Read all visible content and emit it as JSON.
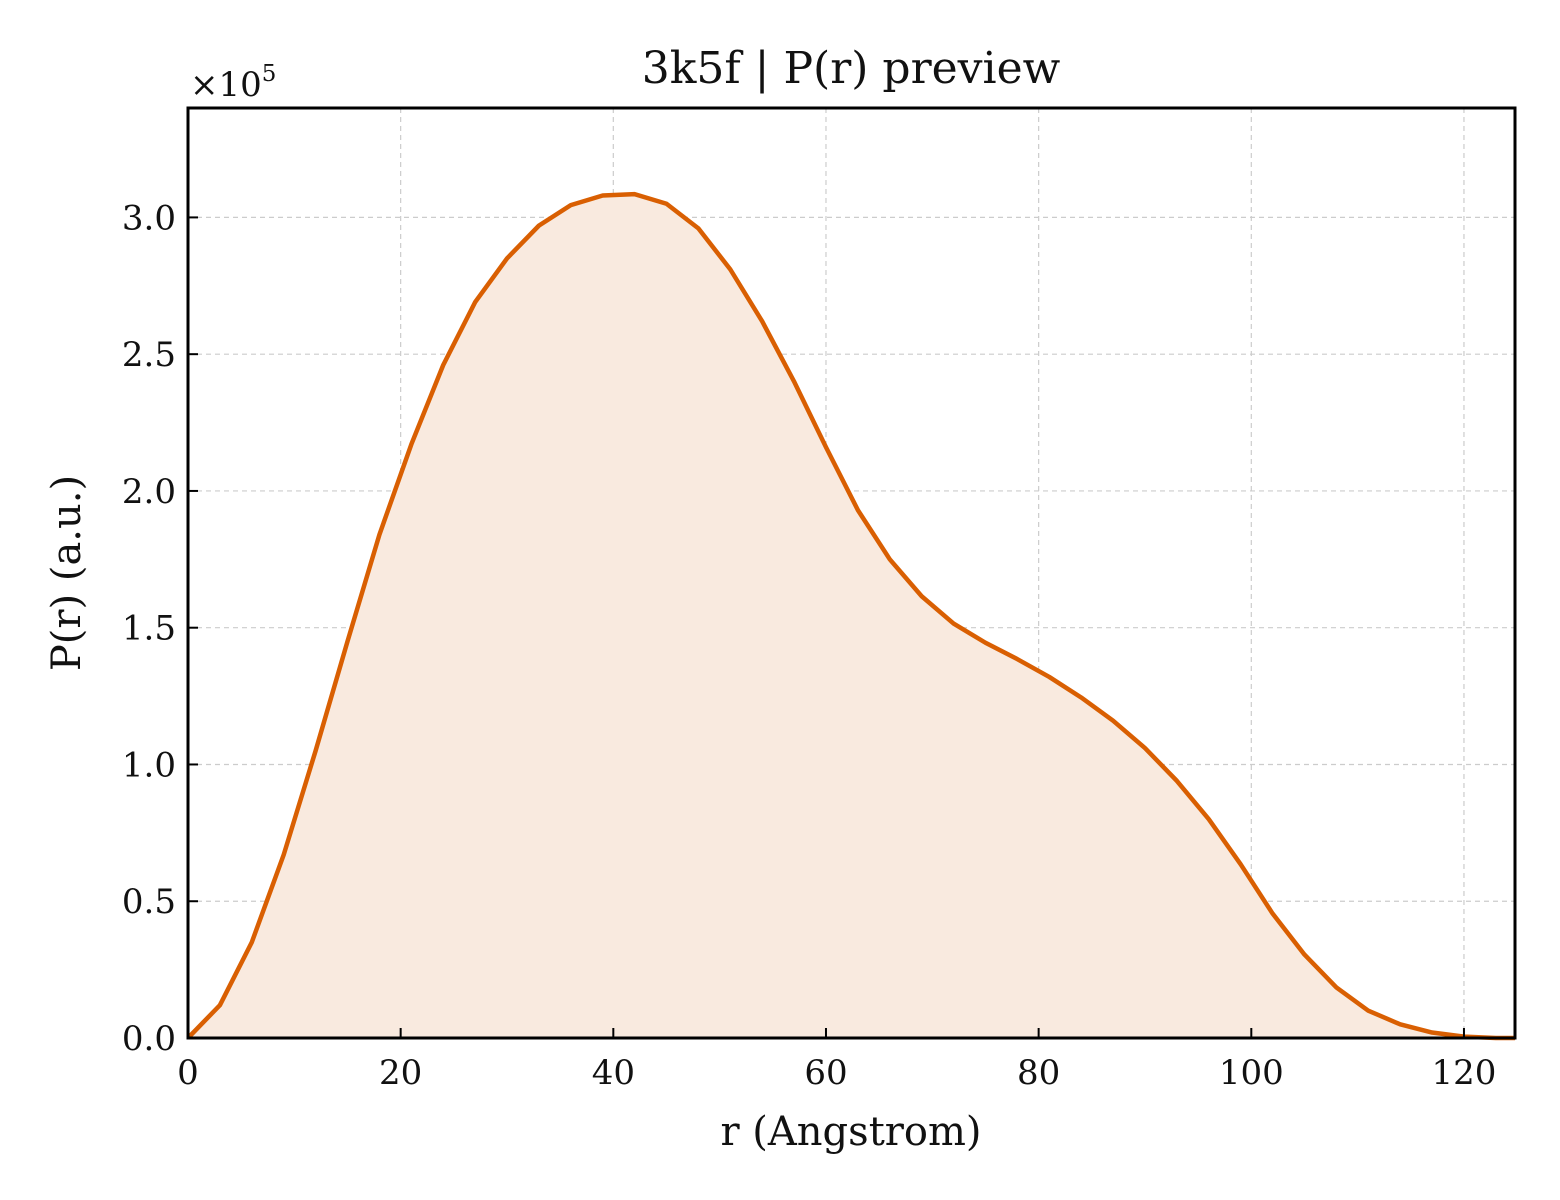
{
  "chart_data": {
    "type": "area",
    "title": "3k5f | P(r) preview",
    "xlabel": "r (Angstrom)",
    "ylabel": "P(r) (a.u.)",
    "y_multiplier_label": "×10",
    "y_multiplier_exponent": "5",
    "xlim": [
      0,
      124.8
    ],
    "ylim": [
      0,
      340000
    ],
    "x_ticks": [
      0,
      20,
      40,
      60,
      80,
      100,
      120
    ],
    "x_tick_labels": [
      "0",
      "20",
      "40",
      "60",
      "80",
      "100",
      "120"
    ],
    "y_ticks": [
      0,
      50000,
      100000,
      150000,
      200000,
      250000,
      300000
    ],
    "y_tick_labels": [
      "0.0",
      "0.5",
      "1.0",
      "1.5",
      "2.0",
      "2.5",
      "3.0"
    ],
    "grid": true,
    "line_color": "#d95f02",
    "fill_color": "#f9eadf",
    "series": [
      {
        "x": [
          0,
          3,
          6,
          9,
          12,
          15,
          18,
          21,
          24,
          27,
          30,
          33,
          36,
          39,
          42,
          45,
          48,
          51,
          54,
          57,
          60,
          63,
          66,
          69,
          72,
          75,
          78,
          81,
          84,
          87,
          90,
          93,
          96,
          99,
          102,
          105,
          108,
          111,
          114,
          117,
          120,
          123,
          124.8
        ],
        "y": [
          0,
          12000,
          35000,
          67000,
          105000,
          145000,
          184000,
          217000,
          246000,
          269000,
          285000,
          297000,
          304500,
          308000,
          308500,
          305000,
          296000,
          281000,
          262000,
          240000,
          216000,
          193000,
          175000,
          161500,
          151500,
          144500,
          138500,
          132000,
          124500,
          116000,
          106000,
          94000,
          80000,
          63500,
          45500,
          30500,
          18500,
          10000,
          5000,
          2000,
          500,
          0,
          0
        ]
      }
    ]
  }
}
